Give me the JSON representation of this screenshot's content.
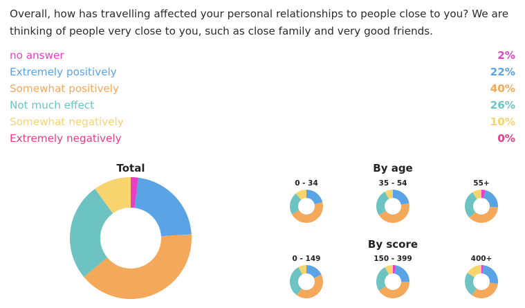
{
  "question": "Overall, how has travelling affected your personal relationships to people close to you? We are thinking of people very close to you, such as close family and very good friends.",
  "chart_data": [
    {
      "type": "pie",
      "title": "Total",
      "categories": [
        "no answer",
        "Extremely positively",
        "Somewhat positively",
        "Not much effect",
        "Somewhat negatively",
        "Extremely negatively"
      ],
      "values": [
        2,
        22,
        40,
        26,
        10,
        0
      ],
      "value_labels": [
        "2%",
        "22%",
        "40%",
        "26%",
        "10%",
        "0%"
      ],
      "colors": [
        "#e83fc4",
        "#5aa3e5",
        "#f4a85a",
        "#6cc3c2",
        "#f7d46e",
        "#e83e82"
      ],
      "donut": true
    },
    {
      "type": "pie",
      "group": "By age",
      "charts": [
        {
          "label": "0 - 34",
          "values": [
            0,
            21,
            46,
            22,
            11,
            0
          ]
        },
        {
          "label": "35 - 54",
          "values": [
            0,
            22,
            44,
            26,
            8,
            0
          ]
        },
        {
          "label": "55+",
          "values": [
            4,
            22,
            37,
            28,
            9,
            0
          ]
        }
      ]
    },
    {
      "type": "pie",
      "group": "By score",
      "charts": [
        {
          "label": "0 - 149",
          "values": [
            0,
            18,
            42,
            32,
            8,
            0
          ]
        },
        {
          "label": "150 - 399",
          "values": [
            3,
            22,
            41,
            26,
            8,
            0
          ]
        },
        {
          "label": "400+",
          "values": [
            2,
            25,
            33,
            24,
            16,
            0
          ]
        }
      ]
    }
  ],
  "headings": {
    "total": "Total",
    "by_age": "By age",
    "by_score": "By score"
  }
}
